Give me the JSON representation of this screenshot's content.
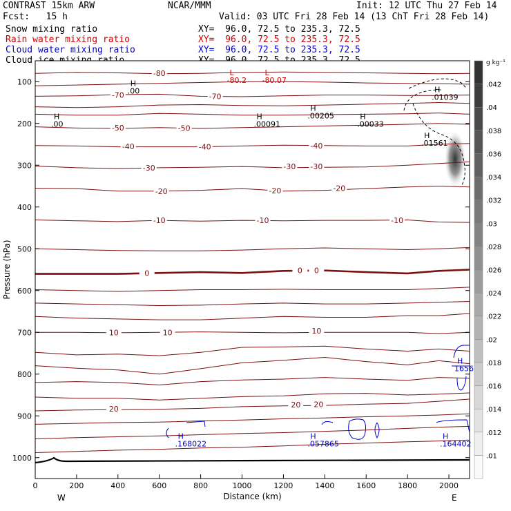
{
  "header": {
    "model": "CONTRAST 15km ARW",
    "org": "NCAR/MMM",
    "init": "Init: 12 UTC Thu 27 Feb 14",
    "fcst": "Fcst:   15 h",
    "valid": "Valid: 03 UTC Fri 28 Feb 14 (13 ChT Fri 28 Feb 14)"
  },
  "fields": [
    {
      "name": "Snow mixing ratio",
      "xy": "XY=  96.0, 72.5 to 235.3, 72.5",
      "color": "#000000"
    },
    {
      "name": "Rain water mixing ratio",
      "xy": "XY=  96.0, 72.5 to 235.3, 72.5",
      "color": "#cc0000"
    },
    {
      "name": "Cloud water mixing ratio",
      "xy": "XY=  96.0, 72.5 to 235.3, 72.5",
      "color": "#0000cc"
    },
    {
      "name": "Cloud ice mixing ratio",
      "xy": "XY=  96.0, 72.5 to 235.3, 72.5",
      "color": "#000000"
    }
  ],
  "chart_data": {
    "type": "contour",
    "xlabel": "Distance (km)",
    "ylabel": "Pressure (hPa)",
    "xlim": [
      0,
      2100
    ],
    "ylim": [
      1050,
      50
    ],
    "x_ticks": [
      0,
      200,
      400,
      600,
      800,
      1000,
      1200,
      1400,
      1600,
      1800,
      2000
    ],
    "y_ticks": [
      100,
      200,
      300,
      400,
      500,
      600,
      700,
      800,
      900,
      1000
    ],
    "direction_labels": {
      "left": "W",
      "right": "E"
    },
    "temperature_contours": [
      {
        "label": "-80",
        "p": [
          80,
          78,
          79,
          81,
          80,
          78,
          77,
          78,
          79,
          80,
          81,
          80
        ],
        "label_pos": [
          600,
          80
        ]
      },
      {
        "label": "",
        "p": [
          110,
          108,
          106,
          104,
          102,
          100,
          100,
          101,
          103,
          104,
          105,
          106
        ]
      },
      {
        "label": "-70",
        "p": [
          135,
          134,
          131,
          130,
          135,
          136,
          134,
          132,
          132,
          133,
          133,
          132
        ],
        "label_pos": [
          400,
          132
        ]
      },
      {
        "label": "-70",
        "p": [
          135,
          134,
          131,
          130,
          135,
          136,
          134,
          132,
          132,
          133,
          133,
          132
        ],
        "label_pos": [
          870,
          135
        ]
      },
      {
        "label": "",
        "p": [
          160,
          162,
          160,
          156,
          155,
          157,
          158,
          156,
          154,
          152,
          150,
          152
        ]
      },
      {
        "label": "",
        "p": [
          178,
          180,
          180,
          176,
          178,
          180,
          180,
          179,
          178,
          177,
          175,
          178
        ]
      },
      {
        "label": "-50",
        "p": [
          208,
          211,
          212,
          210,
          212,
          210,
          208,
          206,
          204,
          202,
          200,
          202
        ],
        "label_pos": [
          400,
          210
        ]
      },
      {
        "label": "-50",
        "p": [
          208,
          211,
          212,
          210,
          212,
          210,
          208,
          206,
          204,
          202,
          200,
          202
        ],
        "label_pos": [
          720,
          211
        ]
      },
      {
        "label": "-40",
        "p": [
          253,
          254,
          256,
          256,
          256,
          254,
          252,
          253,
          254,
          254,
          250,
          248
        ],
        "label_pos": [
          450,
          255
        ]
      },
      {
        "label": "-40",
        "p": [
          253,
          254,
          256,
          256,
          256,
          254,
          252,
          253,
          254,
          254,
          250,
          248
        ],
        "label_pos": [
          820,
          256
        ]
      },
      {
        "label": "-40",
        "p": [
          253,
          254,
          256,
          256,
          256,
          254,
          252,
          253,
          254,
          254,
          250,
          248
        ],
        "label_pos": [
          1360,
          253
        ]
      },
      {
        "label": "-30",
        "p": [
          302,
          306,
          308,
          306,
          305,
          303,
          306,
          305,
          304,
          300,
          296,
          292
        ],
        "label_pos": [
          550,
          306
        ]
      },
      {
        "label": "-30",
        "p": [
          302,
          306,
          308,
          306,
          305,
          303,
          306,
          305,
          304,
          300,
          296,
          292
        ],
        "label_pos": [
          1230,
          303
        ]
      },
      {
        "label": "-30",
        "p": [
          302,
          306,
          308,
          306,
          305,
          303,
          306,
          305,
          304,
          300,
          296,
          292
        ],
        "label_pos": [
          1360,
          303
        ]
      },
      {
        "label": "-20",
        "p": [
          355,
          356,
          362,
          362,
          360,
          356,
          362,
          360,
          356,
          352,
          350,
          352
        ],
        "label_pos": [
          610,
          362
        ]
      },
      {
        "label": "-20",
        "p": [
          355,
          356,
          362,
          362,
          360,
          356,
          362,
          360,
          356,
          352,
          350,
          352
        ],
        "label_pos": [
          1160,
          361
        ]
      },
      {
        "label": "-20",
        "p": [
          355,
          356,
          362,
          362,
          360,
          356,
          362,
          360,
          356,
          352,
          350,
          352
        ],
        "label_pos": [
          1470,
          355
        ]
      },
      {
        "label": "-10",
        "p": [
          431,
          433,
          435,
          432,
          434,
          432,
          433,
          432,
          432,
          431,
          436,
          437
        ],
        "label_pos": [
          600,
          432
        ]
      },
      {
        "label": "-10",
        "p": [
          431,
          433,
          435,
          432,
          434,
          432,
          433,
          432,
          432,
          431,
          436,
          437
        ],
        "label_pos": [
          1100,
          432
        ]
      },
      {
        "label": "-10",
        "p": [
          431,
          433,
          435,
          432,
          434,
          432,
          433,
          432,
          432,
          431,
          436,
          437
        ],
        "label_pos": [
          1750,
          432
        ]
      },
      {
        "label": "",
        "p": [
          500,
          502,
          504,
          505,
          505,
          503,
          500,
          498,
          500,
          502,
          500,
          497
        ]
      },
      {
        "label": "0",
        "p": [
          560,
          560,
          560,
          558,
          556,
          558,
          553,
          552,
          556,
          559,
          553,
          550
        ],
        "label_pos": [
          540,
          558
        ]
      },
      {
        "label": "0",
        "p": [
          560,
          560,
          560,
          558,
          556,
          558,
          553,
          552,
          556,
          559,
          553,
          550
        ],
        "label_pos": [
          1280,
          552
        ]
      },
      {
        "label": "0",
        "p": [
          560,
          560,
          560,
          558,
          556,
          558,
          553,
          552,
          556,
          559,
          553,
          550
        ],
        "label_pos": [
          1360,
          552
        ]
      },
      {
        "label": "",
        "p": [
          598,
          600,
          602,
          600,
          598,
          598,
          597,
          598,
          598,
          598,
          595,
          592
        ]
      },
      {
        "label": "",
        "p": [
          630,
          632,
          634,
          636,
          635,
          632,
          630,
          632,
          632,
          630,
          628,
          626
        ]
      },
      {
        "label": "",
        "p": [
          662,
          666,
          668,
          670,
          670,
          666,
          662,
          664,
          664,
          660,
          660,
          655
        ]
      },
      {
        "label": "10",
        "p": [
          700,
          700,
          701,
          700,
          699,
          700,
          701,
          700,
          700,
          700,
          703,
          700
        ],
        "label_pos": [
          380,
          700
        ]
      },
      {
        "label": "10",
        "p": [
          700,
          700,
          701,
          700,
          699,
          700,
          701,
          700,
          700,
          700,
          703,
          700
        ],
        "label_pos": [
          640,
          700
        ]
      },
      {
        "label": "10",
        "p": [
          700,
          700,
          701,
          700,
          699,
          700,
          701,
          700,
          700,
          700,
          703,
          700
        ],
        "label_pos": [
          1360,
          696
        ]
      },
      {
        "label": "",
        "p": [
          748,
          754,
          752,
          756,
          748,
          736,
          735,
          733,
          740,
          745,
          740,
          745
        ]
      },
      {
        "label": "",
        "p": [
          780,
          786,
          790,
          800,
          787,
          773,
          767,
          760,
          770,
          778,
          768,
          775
        ]
      },
      {
        "label": "",
        "p": [
          820,
          818,
          820,
          826,
          818,
          814,
          812,
          808,
          812,
          815,
          808,
          810
        ]
      },
      {
        "label": "",
        "p": [
          855,
          858,
          858,
          862,
          858,
          854,
          852,
          847,
          846,
          850,
          848,
          845
        ]
      },
      {
        "label": "20",
        "p": [
          888,
          886,
          885,
          884,
          882,
          878,
          876,
          875,
          872,
          870,
          865,
          860
        ],
        "label_pos": [
          380,
          883
        ]
      },
      {
        "label": "20",
        "p": [
          888,
          886,
          885,
          884,
          882,
          878,
          876,
          875,
          872,
          870,
          865,
          860
        ],
        "label_pos": [
          1260,
          873
        ]
      },
      {
        "label": "20",
        "p": [
          888,
          886,
          885,
          884,
          882,
          878,
          876,
          875,
          872,
          870,
          865,
          860
        ],
        "label_pos": [
          1370,
          872
        ]
      },
      {
        "label": "",
        "p": [
          920,
          918,
          916,
          915,
          912,
          910,
          907,
          905,
          902,
          900,
          898,
          895
        ]
      },
      {
        "label": "",
        "p": [
          955,
          952,
          950,
          948,
          945,
          942,
          940,
          937,
          934,
          930,
          927,
          925
        ]
      },
      {
        "label": "",
        "p": [
          988,
          985,
          982,
          980,
          977,
          975,
          972,
          968,
          965,
          962,
          960,
          958
        ]
      }
    ],
    "contour_x": [
      0,
      200,
      400,
      600,
      800,
      1000,
      1200,
      1400,
      1600,
      1800,
      1950,
      2100
    ],
    "bold_isotherm_label": "0",
    "highs_lows": [
      {
        "type": "L",
        "label": "-80.2",
        "x": 940,
        "p": 85,
        "color": "#cc0000"
      },
      {
        "type": "L",
        "label": "-80.07",
        "x": 1110,
        "p": 85,
        "color": "#cc0000"
      },
      {
        "type": "H",
        "label": ".00",
        "x": 460,
        "p": 110,
        "color": "#000000"
      },
      {
        "type": "H",
        "label": ".00",
        "x": 90,
        "p": 190,
        "color": "#000000"
      },
      {
        "type": "H",
        "label": ".00091",
        "x": 1070,
        "p": 190,
        "color": "#000000"
      },
      {
        "type": "H",
        "label": ".00205",
        "x": 1330,
        "p": 170,
        "color": "#000000"
      },
      {
        "type": "H",
        "label": ".00033",
        "x": 1570,
        "p": 190,
        "color": "#000000"
      },
      {
        "type": "H",
        "label": ".01039",
        "x": 1930,
        "p": 125,
        "color": "#000000"
      },
      {
        "type": "H",
        "label": ".01561",
        "x": 1880,
        "p": 235,
        "color": "#000000"
      },
      {
        "type": "H",
        "label": ".168022",
        "x": 690,
        "p": 955,
        "color": "#0000cc"
      },
      {
        "type": "H",
        "label": ".057865",
        "x": 1330,
        "p": 955,
        "color": "#0000cc"
      },
      {
        "type": "H",
        "label": ".164402",
        "x": 1970,
        "p": 955,
        "color": "#0000cc"
      },
      {
        "type": "H",
        "label": "1656",
        "x": 2040,
        "p": 775,
        "color": "#0000cc"
      }
    ],
    "colorbar": {
      "title": "g kg⁻¹",
      "ticks": [
        ".01",
        ".012",
        ".014",
        ".016",
        ".018",
        ".02",
        ".022",
        ".024",
        ".026",
        ".028",
        ".03",
        ".032",
        ".034",
        ".036",
        ".038",
        ".04",
        ".042"
      ]
    }
  }
}
